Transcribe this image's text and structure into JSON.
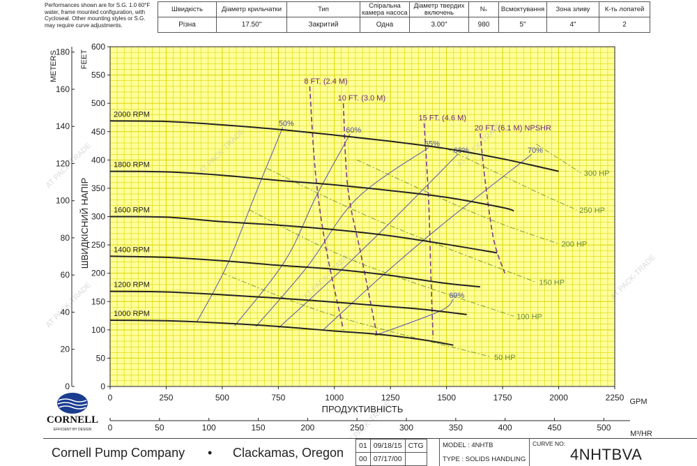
{
  "header": {
    "note": "Performances shown are for S.G. 1.0 60°F water, frame mounted configuration, with Cycloseal. Other mounting styles or S.G. may require curve adjustments.",
    "columns": [
      "Швидкість",
      "Діаметр крильчатки",
      "Тип",
      "Спіральна камера насоса",
      "Діаметр твердих включень",
      "Nₛ",
      "Всмоктування",
      "Зона зливу",
      "К-ть лопатей"
    ],
    "values": [
      "Різна",
      "17.50\"",
      "Закритий",
      "Одна",
      "3.00\"",
      "980",
      "5\"",
      "4\"",
      "2"
    ]
  },
  "footer": {
    "company": "Cornell Pump Company",
    "bullet": "•",
    "city": "Clackamas, Oregon",
    "revisions": [
      [
        "01",
        "09/18/15",
        "CTG"
      ],
      [
        "00",
        "07/17/00",
        ""
      ]
    ],
    "model_line": "MODEL : 4NHTB",
    "type_line": "TYPE : SOLIDS HANDLING",
    "curve_label": "CURVE NO:",
    "curve_no": "4NHTBVA"
  },
  "logo": {
    "text": "CORNELL",
    "tagline": "EFFICIENT BY DESIGN"
  },
  "watermark": "PACK-TRADE",
  "colors": {
    "grid_bg": "#ffff99",
    "grid_line": "#d9d300",
    "rpm": "#222222",
    "eff": "#5555aa",
    "hp": "#7a9a3a",
    "npshr": "#7a3a8a"
  },
  "chart_data": {
    "type": "line",
    "xlabel": "ПРОДУКТИВНІСТЬ",
    "xunit_top": "GPM",
    "xunit_bottom": "M³/HR",
    "ylabel": "ШВИДКІСНИЙ НАПІР",
    "yunit_left": "METERS",
    "yunit_right": "FEET",
    "xlim_gpm": [
      0,
      2250
    ],
    "ylim_feet": [
      0,
      600
    ],
    "ylim_meters": [
      0,
      180
    ],
    "x_ticks_gpm": [
      0,
      250,
      500,
      750,
      1000,
      1250,
      1500,
      1750,
      2000,
      2250
    ],
    "x_ticks_m3hr": [
      0,
      50,
      100,
      150,
      200,
      250,
      300,
      350,
      400,
      450,
      500
    ],
    "y_ticks_feet": [
      0,
      50,
      100,
      150,
      200,
      250,
      300,
      350,
      400,
      450,
      500,
      550,
      600
    ],
    "y_ticks_meters": [
      0,
      20,
      40,
      60,
      80,
      100,
      120,
      140,
      160,
      180
    ],
    "speed_curves": [
      {
        "label": "2000 RPM",
        "points": [
          [
            0,
            469
          ],
          [
            250,
            468
          ],
          [
            500,
            462
          ],
          [
            750,
            454
          ],
          [
            1000,
            444
          ],
          [
            1250,
            433
          ],
          [
            1500,
            420
          ],
          [
            1750,
            402
          ],
          [
            2000,
            380
          ]
        ]
      },
      {
        "label": "1800 RPM",
        "points": [
          [
            0,
            380
          ],
          [
            250,
            379
          ],
          [
            500,
            373
          ],
          [
            750,
            364
          ],
          [
            1000,
            356
          ],
          [
            1250,
            346
          ],
          [
            1500,
            334
          ],
          [
            1750,
            316
          ],
          [
            1800,
            310
          ]
        ]
      },
      {
        "label": "1600 RPM",
        "points": [
          [
            0,
            300
          ],
          [
            250,
            299
          ],
          [
            500,
            291
          ],
          [
            750,
            285
          ],
          [
            1000,
            277
          ],
          [
            1250,
            266
          ],
          [
            1500,
            251
          ],
          [
            1725,
            236
          ]
        ]
      },
      {
        "label": "1400 RPM",
        "points": [
          [
            0,
            230
          ],
          [
            250,
            228
          ],
          [
            500,
            222
          ],
          [
            750,
            214
          ],
          [
            1000,
            207
          ],
          [
            1250,
            196
          ],
          [
            1500,
            182
          ],
          [
            1650,
            176
          ]
        ]
      },
      {
        "label": "1200 RPM",
        "points": [
          [
            0,
            168
          ],
          [
            250,
            167
          ],
          [
            500,
            162
          ],
          [
            750,
            156
          ],
          [
            1000,
            149
          ],
          [
            1250,
            141
          ],
          [
            1400,
            136
          ],
          [
            1590,
            127
          ]
        ]
      },
      {
        "label": "1000 RPM",
        "points": [
          [
            0,
            117
          ],
          [
            250,
            116
          ],
          [
            500,
            112
          ],
          [
            750,
            106
          ],
          [
            1000,
            98
          ],
          [
            1200,
            92
          ],
          [
            1400,
            82
          ],
          [
            1530,
            73
          ]
        ]
      }
    ],
    "efficiency_lines": [
      {
        "label": "50%",
        "points": [
          [
            385,
            113
          ],
          [
            520,
            213
          ],
          [
            650,
            342
          ],
          [
            770,
            458
          ]
        ]
      },
      {
        "label": "60%",
        "points": [
          [
            555,
            107
          ],
          [
            780,
            222
          ],
          [
            920,
            337
          ],
          [
            1070,
            446
          ]
        ]
      },
      {
        "label": "65%",
        "points": [
          [
            650,
            106
          ],
          [
            880,
            212
          ],
          [
            1100,
            332
          ],
          [
            1420,
            422
          ]
        ]
      },
      {
        "label": "68%",
        "points": [
          [
            750,
            103
          ],
          [
            1000,
            194
          ],
          [
            1250,
            290
          ],
          [
            1550,
            410
          ]
        ]
      },
      {
        "label": "69%",
        "points": [
          [
            1180,
            90
          ],
          [
            1470,
            133
          ],
          [
            1530,
            154
          ]
        ]
      },
      {
        "label": "70%",
        "points": [
          [
            950,
            100
          ],
          [
            1220,
            198
          ],
          [
            1500,
            292
          ],
          [
            1880,
            410
          ]
        ]
      }
    ],
    "hp_lines": [
      {
        "label": "50 HP",
        "points": [
          [
            500,
            200
          ],
          [
            1000,
            125
          ],
          [
            1700,
            52
          ]
        ]
      },
      {
        "label": "100 HP",
        "points": [
          [
            620,
            312
          ],
          [
            1100,
            220
          ],
          [
            1800,
            124
          ]
        ]
      },
      {
        "label": "150 HP",
        "points": [
          [
            700,
            385
          ],
          [
            1200,
            292
          ],
          [
            1900,
            184
          ]
        ]
      },
      {
        "label": "200 HP",
        "points": [
          [
            1100,
            400
          ],
          [
            1650,
            302
          ],
          [
            2000,
            252
          ]
        ]
      },
      {
        "label": "250 HP",
        "points": [
          [
            1500,
            420
          ],
          [
            1900,
            344
          ],
          [
            2080,
            312
          ]
        ]
      },
      {
        "label": "300 HP",
        "points": [
          [
            1900,
            428
          ],
          [
            2100,
            377
          ]
        ]
      }
    ],
    "npshr_lines": [
      {
        "label": "8 FT. (2.4 M)",
        "points": [
          [
            890,
            530
          ],
          [
            915,
            380
          ],
          [
            960,
            250
          ],
          [
            1040,
            100
          ]
        ]
      },
      {
        "label": "10 FT. (3.0 M)",
        "points": [
          [
            1040,
            500
          ],
          [
            1060,
            350
          ],
          [
            1120,
            230
          ],
          [
            1190,
            90
          ]
        ]
      },
      {
        "label": "15 FT. (4.6 M)",
        "points": [
          [
            1400,
            465
          ],
          [
            1420,
            330
          ],
          [
            1430,
            200
          ],
          [
            1440,
            85
          ]
        ]
      },
      {
        "label": "20 FT. (6.1 M) NPSHR",
        "points": [
          [
            1650,
            447
          ],
          [
            1670,
            370
          ],
          [
            1710,
            260
          ],
          [
            1760,
            200
          ]
        ]
      }
    ]
  }
}
